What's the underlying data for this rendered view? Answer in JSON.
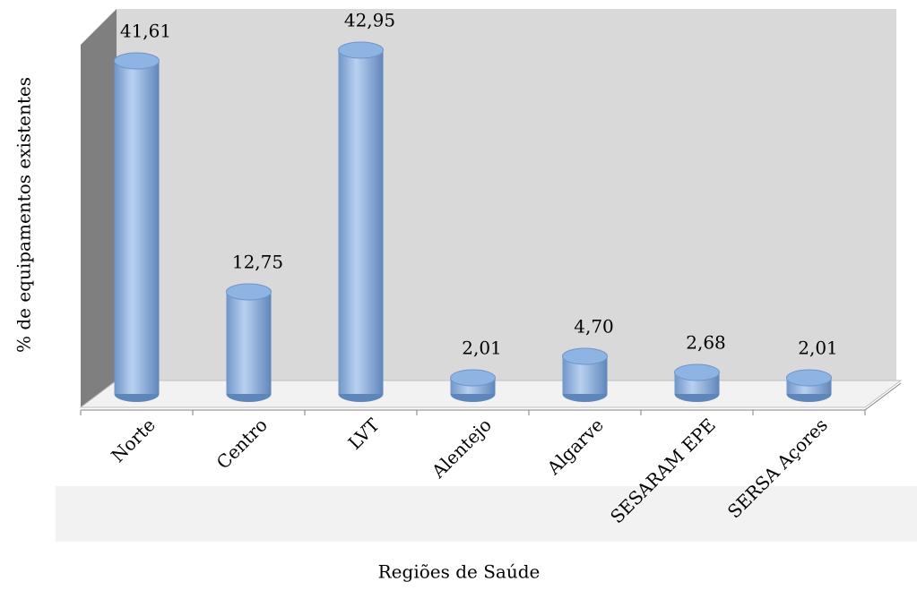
{
  "chart_data": {
    "type": "bar",
    "x_label": "Regiões de Saúde",
    "y_label": "% de equipamentos existentes",
    "categories": [
      "Norte",
      "Centro",
      "LVT",
      "Alentejo",
      "Algarve",
      "SESARAM EPE",
      "SERSA Açores"
    ],
    "values": [
      41.61,
      12.75,
      42.95,
      2.01,
      4.7,
      2.68,
      2.01
    ],
    "value_labels": [
      "41,61",
      "12,75",
      "42,95",
      "2,01",
      "4,70",
      "2,68",
      "2,01"
    ],
    "color": "#8eb4e3"
  }
}
